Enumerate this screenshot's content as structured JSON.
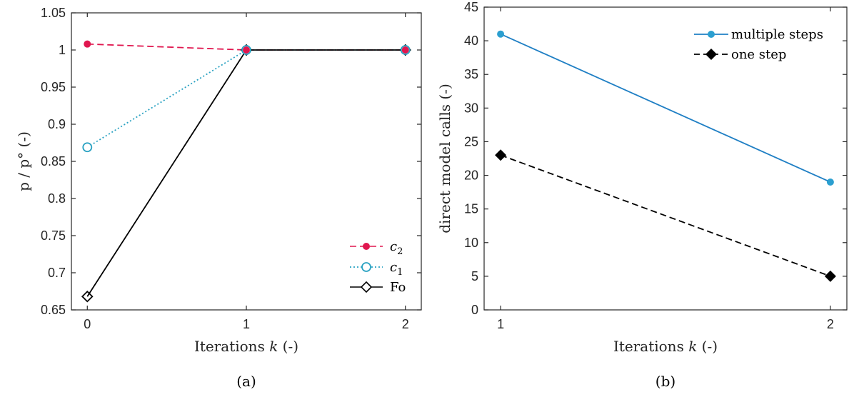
{
  "chart_data": [
    {
      "type": "line",
      "caption": "(a)",
      "xlabel_prefix": "Iterations ",
      "xlabel_var": "k",
      "xlabel_suffix": " (-)",
      "ylabel": "p / p° (-)",
      "xlim": [
        -0.1,
        2.1
      ],
      "ylim": [
        0.65,
        1.05
      ],
      "xticks": [
        "0",
        "1",
        "2"
      ],
      "yticks": [
        "0.65",
        "0.7",
        "0.75",
        "0.8",
        "0.85",
        "0.9",
        "0.95",
        "1",
        "1.05"
      ],
      "x": [
        0,
        1,
        2
      ],
      "legend_position": "bottom-right",
      "series": [
        {
          "name": "c",
          "subscript": "2",
          "values": [
            1.008,
            1.0,
            1.0
          ],
          "color": "#e0174f",
          "dash": "dashed",
          "marker": "filled-circle"
        },
        {
          "name": "c",
          "subscript": "1",
          "values": [
            0.869,
            1.0,
            1.0
          ],
          "color": "#2aa2c2",
          "dash": "dotted",
          "marker": "open-circle"
        },
        {
          "name": "Fo",
          "subscript": "",
          "values": [
            0.668,
            1.0,
            1.0
          ],
          "color": "#000000",
          "dash": "solid",
          "marker": "open-diamond"
        }
      ]
    },
    {
      "type": "line",
      "caption": "(b)",
      "xlabel_prefix": "Iterations ",
      "xlabel_var": "k",
      "xlabel_suffix": " (-)",
      "ylabel": "direct model calls (-)",
      "xlim": [
        0.95,
        2.05
      ],
      "ylim": [
        0,
        45
      ],
      "xticks": [
        "1",
        "2"
      ],
      "yticks": [
        "0",
        "5",
        "10",
        "15",
        "20",
        "25",
        "30",
        "35",
        "40",
        "45"
      ],
      "x": [
        1,
        2
      ],
      "legend_position": "top-right",
      "series": [
        {
          "name": "multiple steps",
          "subscript": "",
          "values": [
            41,
            19
          ],
          "color": "#1f7fc4",
          "dash": "solid",
          "marker": "filled-circle"
        },
        {
          "name": "one step",
          "subscript": "",
          "values": [
            23,
            5
          ],
          "color": "#000000",
          "dash": "dashed",
          "marker": "filled-diamond"
        }
      ]
    }
  ]
}
